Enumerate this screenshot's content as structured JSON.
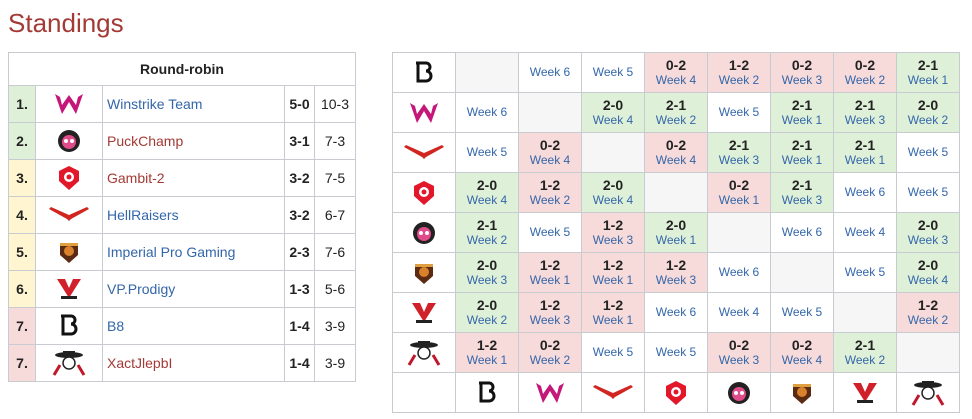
{
  "page": {
    "title": "Standings"
  },
  "standings": {
    "header": "Round-robin",
    "rows": [
      {
        "rank": "1.",
        "team": "Winstrike Team",
        "score": "5-0",
        "games": "10-3",
        "logo": "winstrike-logo",
        "color": "green",
        "link": "blue"
      },
      {
        "rank": "2.",
        "team": "PuckChamp",
        "score": "3-1",
        "games": "7-3",
        "logo": "puckchamp-logo",
        "color": "green",
        "link": "red"
      },
      {
        "rank": "3.",
        "team": "Gambit-2",
        "score": "3-2",
        "games": "7-5",
        "logo": "gambit-logo",
        "color": "yellow",
        "link": "red"
      },
      {
        "rank": "4.",
        "team": "HellRaisers",
        "score": "3-2",
        "games": "6-7",
        "logo": "hellraisers-logo",
        "color": "yellow",
        "link": "blue"
      },
      {
        "rank": "5.",
        "team": "Imperial Pro Gaming",
        "score": "2-3",
        "games": "7-6",
        "logo": "imperial-logo",
        "color": "yellow",
        "link": "blue"
      },
      {
        "rank": "6.",
        "team": "VP.Prodigy",
        "score": "1-3",
        "games": "5-6",
        "logo": "vp-prodigy-logo",
        "color": "yellow",
        "link": "blue"
      },
      {
        "rank": "7.",
        "team": "B8",
        "score": "1-4",
        "games": "3-9",
        "logo": "b8-logo",
        "color": "red",
        "link": "blue"
      },
      {
        "rank": "7.",
        "team": "XactJlepbI",
        "score": "1-4",
        "games": "3-9",
        "logo": "xactjlepbi-logo",
        "color": "red",
        "link": "red"
      }
    ]
  },
  "crosstable": {
    "rows": [
      {
        "logo": "b8-logo",
        "cells": [
          {
            "type": "empty"
          },
          {
            "type": "pending",
            "week": "Week 6"
          },
          {
            "type": "pending",
            "week": "Week 5"
          },
          {
            "type": "loss",
            "result": "0-2",
            "week": "Week 4"
          },
          {
            "type": "loss",
            "result": "1-2",
            "week": "Week 2"
          },
          {
            "type": "loss",
            "result": "0-2",
            "week": "Week 3"
          },
          {
            "type": "loss",
            "result": "0-2",
            "week": "Week 2"
          },
          {
            "type": "win",
            "result": "2-1",
            "week": "Week 1"
          }
        ]
      },
      {
        "logo": "winstrike-logo",
        "cells": [
          {
            "type": "pending",
            "week": "Week 6"
          },
          {
            "type": "empty"
          },
          {
            "type": "win",
            "result": "2-0",
            "week": "Week 4"
          },
          {
            "type": "win",
            "result": "2-1",
            "week": "Week 2"
          },
          {
            "type": "pending",
            "week": "Week 5"
          },
          {
            "type": "win",
            "result": "2-1",
            "week": "Week 1"
          },
          {
            "type": "win",
            "result": "2-1",
            "week": "Week 3"
          },
          {
            "type": "win",
            "result": "2-0",
            "week": "Week 2"
          }
        ]
      },
      {
        "logo": "hellraisers-logo",
        "cells": [
          {
            "type": "pending",
            "week": "Week 5"
          },
          {
            "type": "loss",
            "result": "0-2",
            "week": "Week 4"
          },
          {
            "type": "empty"
          },
          {
            "type": "loss",
            "result": "0-2",
            "week": "Week 4"
          },
          {
            "type": "win",
            "result": "2-1",
            "week": "Week 3"
          },
          {
            "type": "win",
            "result": "2-1",
            "week": "Week 1"
          },
          {
            "type": "win",
            "result": "2-1",
            "week": "Week 1"
          },
          {
            "type": "pending",
            "week": "Week 5"
          }
        ]
      },
      {
        "logo": "gambit-logo",
        "cells": [
          {
            "type": "win",
            "result": "2-0",
            "week": "Week 4"
          },
          {
            "type": "loss",
            "result": "1-2",
            "week": "Week 2"
          },
          {
            "type": "win",
            "result": "2-0",
            "week": "Week 4"
          },
          {
            "type": "empty"
          },
          {
            "type": "loss",
            "result": "0-2",
            "week": "Week 1"
          },
          {
            "type": "win",
            "result": "2-1",
            "week": "Week 3"
          },
          {
            "type": "pending",
            "week": "Week 6"
          },
          {
            "type": "pending",
            "week": "Week 5"
          }
        ]
      },
      {
        "logo": "puckchamp-logo",
        "cells": [
          {
            "type": "win",
            "result": "2-1",
            "week": "Week 2"
          },
          {
            "type": "pending",
            "week": "Week 5"
          },
          {
            "type": "loss",
            "result": "1-2",
            "week": "Week 3"
          },
          {
            "type": "win",
            "result": "2-0",
            "week": "Week 1"
          },
          {
            "type": "empty"
          },
          {
            "type": "pending",
            "week": "Week 6"
          },
          {
            "type": "pending",
            "week": "Week 4"
          },
          {
            "type": "win",
            "result": "2-0",
            "week": "Week 3"
          }
        ]
      },
      {
        "logo": "imperial-logo",
        "cells": [
          {
            "type": "win",
            "result": "2-0",
            "week": "Week 3"
          },
          {
            "type": "loss",
            "result": "1-2",
            "week": "Week 1"
          },
          {
            "type": "loss",
            "result": "1-2",
            "week": "Week 1"
          },
          {
            "type": "loss",
            "result": "1-2",
            "week": "Week 3"
          },
          {
            "type": "pending",
            "week": "Week 6"
          },
          {
            "type": "empty"
          },
          {
            "type": "pending",
            "week": "Week 5"
          },
          {
            "type": "win",
            "result": "2-0",
            "week": "Week 4"
          }
        ]
      },
      {
        "logo": "vp-prodigy-logo",
        "cells": [
          {
            "type": "win",
            "result": "2-0",
            "week": "Week 2"
          },
          {
            "type": "loss",
            "result": "1-2",
            "week": "Week 3"
          },
          {
            "type": "loss",
            "result": "1-2",
            "week": "Week 1"
          },
          {
            "type": "pending",
            "week": "Week 6"
          },
          {
            "type": "pending",
            "week": "Week 4"
          },
          {
            "type": "pending",
            "week": "Week 5"
          },
          {
            "type": "empty"
          },
          {
            "type": "loss",
            "result": "1-2",
            "week": "Week 2"
          }
        ]
      },
      {
        "logo": "xactjlepbi-logo",
        "cells": [
          {
            "type": "loss",
            "result": "1-2",
            "week": "Week 1"
          },
          {
            "type": "loss",
            "result": "0-2",
            "week": "Week 2"
          },
          {
            "type": "pending",
            "week": "Week 5"
          },
          {
            "type": "pending",
            "week": "Week 5"
          },
          {
            "type": "loss",
            "result": "0-2",
            "week": "Week 3"
          },
          {
            "type": "loss",
            "result": "0-2",
            "week": "Week 4"
          },
          {
            "type": "win",
            "result": "2-1",
            "week": "Week 2"
          },
          {
            "type": "empty"
          }
        ]
      }
    ],
    "footer": [
      "b8-logo",
      "winstrike-logo",
      "hellraisers-logo",
      "gambit-logo",
      "puckchamp-logo",
      "imperial-logo",
      "vp-prodigy-logo",
      "xactjlepbi-logo"
    ]
  },
  "colors": {
    "title": "#a33a35",
    "link": "#3366aa",
    "win_bg": "#dff0d8",
    "loss_bg": "#f7dada",
    "mid_bg": "#fff5d1"
  }
}
